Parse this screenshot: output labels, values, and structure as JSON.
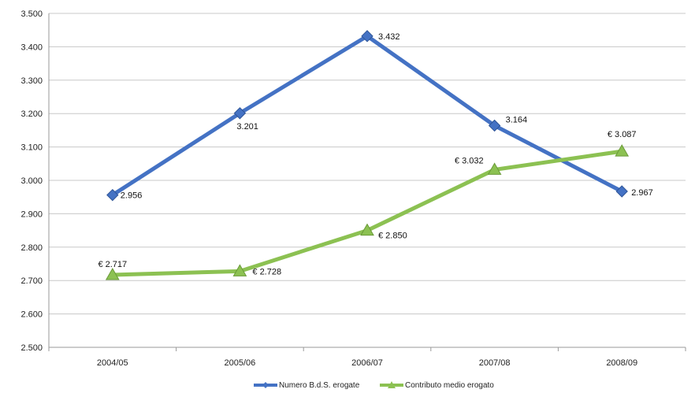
{
  "chart_data": {
    "type": "line",
    "categories": [
      "2004/05",
      "2005/06",
      "2006/07",
      "2007/08",
      "2008/09"
    ],
    "ylim": [
      2500,
      3500
    ],
    "yticks": [
      2500,
      2600,
      2700,
      2800,
      2900,
      3000,
      3100,
      3200,
      3300,
      3400,
      3500
    ],
    "ytick_labels": [
      "2.500",
      "2.600",
      "2.700",
      "2.800",
      "2.900",
      "3.000",
      "3.100",
      "3.200",
      "3.300",
      "3.400",
      "3.500"
    ],
    "grid": true,
    "legend_position": "bottom",
    "series": [
      {
        "name": "Numero B.d.S. erogate",
        "values": [
          2956,
          3201,
          3432,
          3164,
          2967
        ],
        "labels": [
          "2.956",
          "3.201",
          "3.432",
          "3.164",
          "2.967"
        ],
        "color": "#4472c4",
        "marker": "diamond"
      },
      {
        "name": "Contributo medio erogato",
        "values": [
          2717,
          2728,
          2850,
          3032,
          3087
        ],
        "labels": [
          "€ 2.717",
          "€ 2.728",
          "€ 2.850",
          "€ 3.032",
          "€ 3.087"
        ],
        "color": "#8cc152",
        "marker": "triangle"
      }
    ]
  }
}
